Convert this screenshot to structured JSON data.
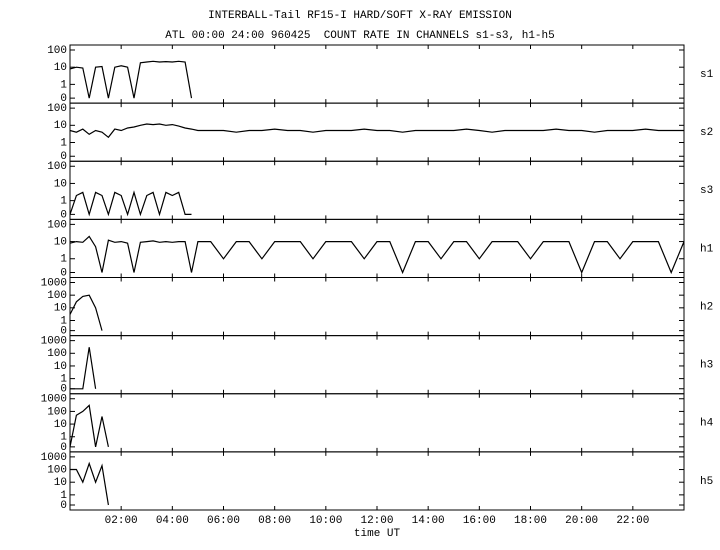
{
  "chart_data": {
    "type": "line",
    "title": "INTERBALL-Tail RF15-I HARD/SOFT X-RAY EMISSION",
    "subtitle": "ATL 00:00 24:00 960425  COUNT RATE IN CHANNELS s1-s3, h1-h5",
    "x_label": "time UT",
    "log": true,
    "xlim": [
      0,
      24
    ],
    "xticks": [
      {
        "value": 2,
        "label": "02:00"
      },
      {
        "value": 4,
        "label": "04:00"
      },
      {
        "value": 6,
        "label": "06:00"
      },
      {
        "value": 8,
        "label": "08:00"
      },
      {
        "value": 10,
        "label": "10:00"
      },
      {
        "value": 12,
        "label": "12:00"
      },
      {
        "value": 14,
        "label": "14:00"
      },
      {
        "value": 16,
        "label": "16:00"
      },
      {
        "value": 18,
        "label": "18:00"
      },
      {
        "value": 20,
        "label": "20:00"
      },
      {
        "value": 22,
        "label": "22:00"
      }
    ],
    "x": [
      0,
      0.25,
      0.5,
      0.75,
      1,
      1.25,
      1.5,
      1.75,
      2,
      2.25,
      2.5,
      2.75,
      3,
      3.25,
      3.5,
      3.75,
      4,
      4.25,
      4.5,
      4.75,
      5,
      5.5,
      6,
      6.5,
      7,
      7.5,
      8,
      8.5,
      9,
      9.5,
      10,
      10.5,
      11,
      11.5,
      12,
      12.5,
      13,
      13.5,
      14,
      14.5,
      15,
      15.5,
      16,
      16.5,
      17,
      17.5,
      18,
      18.5,
      19,
      19.5,
      20,
      20.5,
      21,
      21.5,
      22,
      22.5,
      23,
      23.5,
      24
    ],
    "series": [
      {
        "name": "s1",
        "color": "#000000",
        "ylim": [
          0,
          100
        ],
        "yticks": [
          0,
          1,
          10,
          100
        ],
        "values": [
          8,
          10,
          9,
          0,
          10,
          11,
          0,
          10,
          12,
          10,
          0,
          18,
          20,
          22,
          20,
          21,
          20,
          22,
          20,
          0,
          null,
          null,
          null,
          null,
          null,
          null,
          null,
          null,
          null,
          null,
          null,
          null,
          null,
          null,
          null,
          null,
          null,
          null,
          null,
          null,
          null,
          null,
          null,
          null,
          null,
          null,
          null,
          null,
          null,
          null,
          null,
          null,
          null,
          null,
          null,
          null,
          null,
          null,
          null
        ]
      },
      {
        "name": "s2",
        "color": "#000000",
        "ylim": [
          0,
          100
        ],
        "yticks": [
          0,
          1,
          10,
          100
        ],
        "values": [
          5,
          4,
          6,
          3,
          5,
          4,
          2,
          6,
          5,
          7,
          8,
          10,
          12,
          11,
          12,
          10,
          11,
          9,
          7,
          6,
          5,
          5,
          5,
          4,
          5,
          5,
          6,
          5,
          5,
          4,
          5,
          5,
          5,
          6,
          5,
          5,
          4,
          5,
          5,
          5,
          5,
          6,
          5,
          4,
          5,
          5,
          5,
          5,
          6,
          5,
          5,
          4,
          5,
          5,
          5,
          6,
          5,
          5,
          5
        ]
      },
      {
        "name": "s3",
        "color": "#000000",
        "ylim": [
          0,
          100
        ],
        "yticks": [
          0,
          1,
          10,
          100
        ],
        "values": [
          0,
          2,
          3,
          0,
          3,
          2,
          0,
          3,
          2,
          0,
          3,
          0,
          2,
          3,
          0,
          3,
          2,
          3,
          0,
          0,
          null,
          null,
          null,
          null,
          null,
          null,
          null,
          null,
          null,
          null,
          null,
          null,
          null,
          null,
          null,
          null,
          null,
          null,
          null,
          null,
          null,
          null,
          null,
          null,
          null,
          null,
          null,
          null,
          null,
          null,
          null,
          null,
          null,
          null,
          null,
          null,
          null,
          null,
          null
        ]
      },
      {
        "name": "h1",
        "color": "#000000",
        "ylim": [
          0,
          100
        ],
        "yticks": [
          0,
          1,
          10,
          100
        ],
        "values": [
          8,
          10,
          9,
          20,
          5,
          0,
          12,
          9,
          10,
          8,
          0,
          9,
          10,
          11,
          9,
          10,
          9,
          10,
          10,
          0,
          10,
          10,
          1,
          10,
          10,
          1,
          10,
          10,
          10,
          1,
          10,
          10,
          10,
          1,
          10,
          10,
          0,
          10,
          10,
          1,
          10,
          10,
          1,
          10,
          10,
          10,
          1,
          10,
          10,
          10,
          0,
          10,
          10,
          1,
          10,
          10,
          10,
          0,
          10
        ]
      },
      {
        "name": "h2",
        "color": "#000000",
        "ylim": [
          0,
          1000
        ],
        "yticks": [
          0,
          1,
          10,
          100,
          1000
        ],
        "values": [
          3,
          30,
          80,
          100,
          10,
          0,
          null,
          null,
          null,
          null,
          null,
          null,
          null,
          null,
          null,
          null,
          null,
          null,
          null,
          null,
          null,
          null,
          null,
          null,
          null,
          null,
          null,
          null,
          null,
          null,
          null,
          null,
          null,
          null,
          null,
          null,
          null,
          null,
          null,
          null,
          null,
          null,
          null,
          null,
          null,
          null,
          null,
          null,
          null,
          null,
          null,
          null,
          null,
          null,
          null,
          null,
          null,
          null,
          null
        ]
      },
      {
        "name": "h3",
        "color": "#000000",
        "ylim": [
          0,
          1000
        ],
        "yticks": [
          0,
          1,
          10,
          100,
          1000
        ],
        "values": [
          0,
          0,
          0,
          300,
          0,
          null,
          null,
          null,
          null,
          null,
          null,
          null,
          null,
          null,
          null,
          null,
          null,
          null,
          null,
          null,
          null,
          null,
          null,
          null,
          null,
          null,
          null,
          null,
          null,
          null,
          null,
          null,
          null,
          null,
          null,
          null,
          null,
          null,
          null,
          null,
          null,
          null,
          null,
          null,
          null,
          null,
          null,
          null,
          null,
          null,
          null,
          null,
          null,
          null,
          null,
          null,
          null,
          null,
          null
        ]
      },
      {
        "name": "h4",
        "color": "#000000",
        "ylim": [
          0,
          1000
        ],
        "yticks": [
          0,
          1,
          10,
          100,
          1000
        ],
        "values": [
          0,
          50,
          100,
          300,
          0,
          40,
          0,
          null,
          null,
          null,
          null,
          null,
          null,
          null,
          null,
          null,
          null,
          null,
          null,
          null,
          null,
          null,
          null,
          null,
          null,
          null,
          null,
          null,
          null,
          null,
          null,
          null,
          null,
          null,
          null,
          null,
          null,
          null,
          null,
          null,
          null,
          null,
          null,
          null,
          null,
          null,
          null,
          null,
          null,
          null,
          null,
          null,
          null,
          null,
          null,
          null,
          null,
          null,
          null
        ]
      },
      {
        "name": "h5",
        "color": "#000000",
        "ylim": [
          0,
          1000
        ],
        "yticks": [
          0,
          1,
          10,
          100,
          1000
        ],
        "values": [
          100,
          100,
          10,
          300,
          10,
          200,
          0,
          null,
          null,
          null,
          null,
          null,
          null,
          null,
          null,
          null,
          null,
          null,
          null,
          null,
          null,
          null,
          null,
          null,
          null,
          null,
          null,
          null,
          null,
          null,
          null,
          null,
          null,
          null,
          null,
          null,
          null,
          null,
          null,
          null,
          null,
          null,
          null,
          null,
          null,
          null,
          null,
          null,
          null,
          null,
          null,
          null,
          null,
          null,
          null,
          null,
          null,
          null,
          null
        ]
      }
    ]
  }
}
